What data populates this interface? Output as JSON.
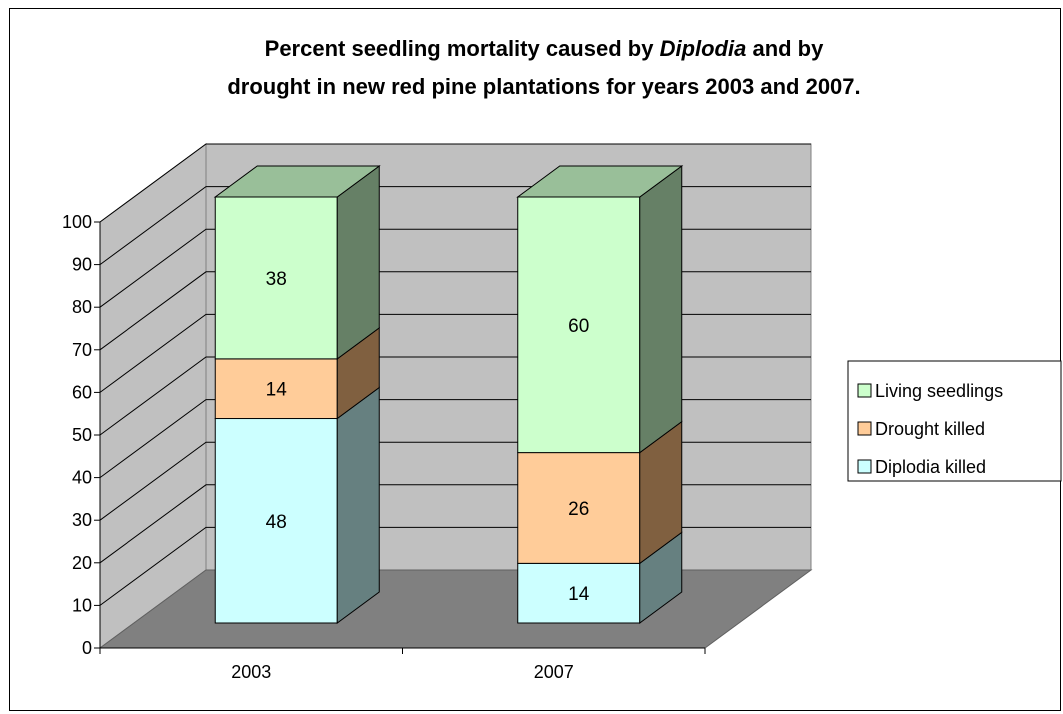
{
  "chart_data": {
    "type": "bar",
    "stacked": true,
    "three_d": true,
    "title_parts": [
      {
        "line": 1,
        "text": "Percent seedling mortality caused by ",
        "italic": false
      },
      {
        "line": 1,
        "text": "Diplodia",
        "italic": true
      },
      {
        "line": 1,
        "text": " and by",
        "italic": false
      },
      {
        "line": 2,
        "text": "drought in new red pine plantations for years 2003 and 2007.",
        "italic": false
      }
    ],
    "categories": [
      "2003",
      "2007"
    ],
    "series": [
      {
        "name": "Diplodia killed",
        "values": [
          48,
          14
        ],
        "color": "#CCFFFF",
        "side_color": "#668080",
        "top_color": "#99BFBF"
      },
      {
        "name": "Drought killed",
        "values": [
          14,
          26
        ],
        "color": "#FFCC99",
        "side_color": "#806040",
        "top_color": "#BF9973"
      },
      {
        "name": "Living seedlings",
        "values": [
          38,
          60
        ],
        "color": "#CCFFCC",
        "side_color": "#668066",
        "top_color": "#99BF99"
      }
    ],
    "ylim": [
      0,
      100
    ],
    "yticks": [
      0,
      10,
      20,
      30,
      40,
      50,
      60,
      70,
      80,
      90,
      100
    ],
    "xlabel": "",
    "ylabel": "",
    "grid": true,
    "legend_position": "right",
    "colors": {
      "back_wall": "#C0C0C0",
      "side_wall": "#C0C0C0",
      "floor": "#808080",
      "gridline": "#000000"
    }
  }
}
